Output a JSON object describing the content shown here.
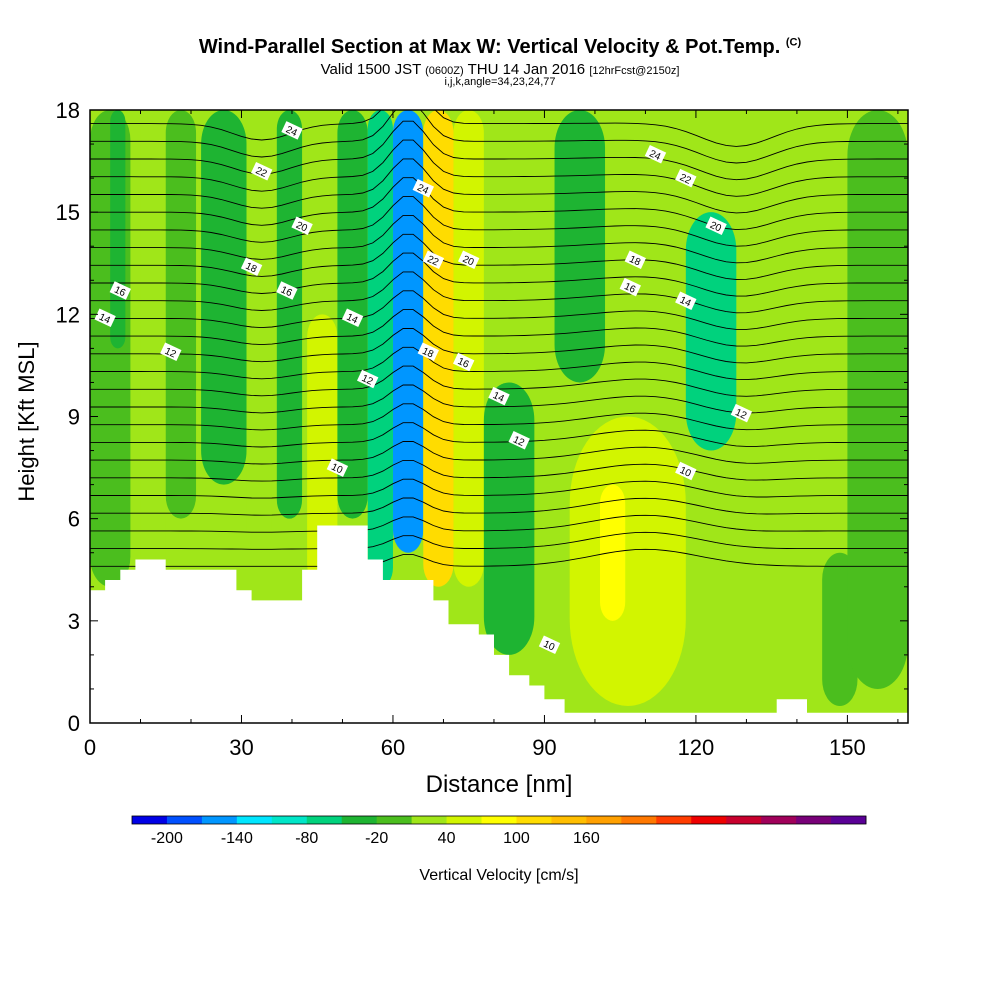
{
  "title": {
    "main": "Wind-Parallel Section at Max W: Vertical Velocity & Pot.Temp.",
    "copyright": "(C)",
    "valid_prefix": "Valid 1500 JST",
    "valid_utc": "(0600Z)",
    "valid_date": "THU 14 Jan 2016",
    "forecast": "[12hrFcst@2150z]",
    "indices": "i,j,k,angle=34,23,24,77"
  },
  "chart_data": {
    "type": "heatmap",
    "xlabel": "Distance [nm]",
    "ylabel": "Height [Kft MSL]",
    "xlim": [
      0,
      162
    ],
    "ylim": [
      0,
      18
    ],
    "x_ticks": [
      0,
      30,
      60,
      90,
      120,
      150
    ],
    "y_ticks": [
      0,
      3,
      6,
      9,
      12,
      15,
      18
    ],
    "colorbar": {
      "label": "Vertical Velocity [cm/s]",
      "ticks": [
        -200,
        -140,
        -80,
        -20,
        40,
        100,
        160
      ],
      "colors": [
        "#0000e6",
        "#0050ff",
        "#0096ff",
        "#00e6ff",
        "#00e6c8",
        "#00d27d",
        "#1eb432",
        "#4bbe1e",
        "#a0e619",
        "#d2f500",
        "#ffff00",
        "#ffdc00",
        "#ffbe00",
        "#ffa000",
        "#ff7800",
        "#ff3c00",
        "#ee0000",
        "#c8002d",
        "#a0005a",
        "#780078",
        "#5a0096"
      ]
    },
    "velocity_cells": [
      {
        "x": [
          0,
          8
        ],
        "y": [
          4,
          18
        ],
        "w": -15
      },
      {
        "x": [
          4,
          7
        ],
        "y": [
          11,
          18
        ],
        "w": -30
      },
      {
        "x": [
          10,
          15
        ],
        "y": [
          4,
          18
        ],
        "w": 10
      },
      {
        "x": [
          15,
          21
        ],
        "y": [
          6,
          18
        ],
        "w": 5
      },
      {
        "x": [
          22,
          31
        ],
        "y": [
          7,
          18
        ],
        "w": -35
      },
      {
        "x": [
          24,
          29
        ],
        "y": [
          11,
          18
        ],
        "w": -45
      },
      {
        "x": [
          31,
          36
        ],
        "y": [
          5,
          18
        ],
        "w": 30
      },
      {
        "x": [
          37,
          42
        ],
        "y": [
          6,
          18
        ],
        "w": -40
      },
      {
        "x": [
          43,
          49
        ],
        "y": [
          4,
          12
        ],
        "w": 50
      },
      {
        "x": [
          49,
          55
        ],
        "y": [
          6,
          18
        ],
        "w": -30
      },
      {
        "x": [
          55,
          60
        ],
        "y": [
          4,
          18
        ],
        "w": -80
      },
      {
        "x": [
          60,
          66
        ],
        "y": [
          5,
          18
        ],
        "w": -160
      },
      {
        "x": [
          66,
          72
        ],
        "y": [
          4,
          18
        ],
        "w": 120
      },
      {
        "x": [
          72,
          78
        ],
        "y": [
          4,
          18
        ],
        "w": 50
      },
      {
        "x": [
          78,
          88
        ],
        "y": [
          2,
          10
        ],
        "w": -25
      },
      {
        "x": [
          95,
          118
        ],
        "y": [
          0.5,
          9
        ],
        "w": 60
      },
      {
        "x": [
          101,
          106
        ],
        "y": [
          3,
          7
        ],
        "w": 90
      },
      {
        "x": [
          92,
          102
        ],
        "y": [
          10,
          18
        ],
        "w": -50
      },
      {
        "x": [
          118,
          128
        ],
        "y": [
          8,
          15
        ],
        "w": -70
      },
      {
        "x": [
          145,
          152
        ],
        "y": [
          0.5,
          5
        ],
        "w": -20
      },
      {
        "x": [
          150,
          162
        ],
        "y": [
          1,
          18
        ],
        "w": 5
      }
    ],
    "potential_temperature_labels": [
      {
        "x": 3,
        "y": 11.9,
        "value": "14"
      },
      {
        "x": 6,
        "y": 12.7,
        "value": "16"
      },
      {
        "x": 16,
        "y": 10.9,
        "value": "12"
      },
      {
        "x": 40,
        "y": 17.4,
        "value": "24"
      },
      {
        "x": 34,
        "y": 16.2,
        "value": "22"
      },
      {
        "x": 42,
        "y": 14.6,
        "value": "20"
      },
      {
        "x": 32,
        "y": 13.4,
        "value": "18"
      },
      {
        "x": 39,
        "y": 12.7,
        "value": "16"
      },
      {
        "x": 52,
        "y": 11.9,
        "value": "14"
      },
      {
        "x": 55,
        "y": 10.1,
        "value": "12"
      },
      {
        "x": 49,
        "y": 7.5,
        "value": "10"
      },
      {
        "x": 66,
        "y": 15.7,
        "value": "24"
      },
      {
        "x": 68,
        "y": 13.6,
        "value": "22"
      },
      {
        "x": 75,
        "y": 13.6,
        "value": "20"
      },
      {
        "x": 67,
        "y": 10.9,
        "value": "18"
      },
      {
        "x": 74,
        "y": 10.6,
        "value": "16"
      },
      {
        "x": 81,
        "y": 9.6,
        "value": "14"
      },
      {
        "x": 85,
        "y": 8.3,
        "value": "12"
      },
      {
        "x": 91,
        "y": 2.3,
        "value": "10"
      },
      {
        "x": 112,
        "y": 16.7,
        "value": "24"
      },
      {
        "x": 118,
        "y": 16.0,
        "value": "22"
      },
      {
        "x": 124,
        "y": 14.6,
        "value": "20"
      },
      {
        "x": 108,
        "y": 13.6,
        "value": "18"
      },
      {
        "x": 107,
        "y": 12.8,
        "value": "16"
      },
      {
        "x": 118,
        "y": 12.4,
        "value": "14"
      },
      {
        "x": 129,
        "y": 9.1,
        "value": "12"
      },
      {
        "x": 118,
        "y": 7.4,
        "value": "10"
      }
    ],
    "terrain_profile": [
      [
        0,
        3.9
      ],
      [
        3,
        3.9
      ],
      [
        3,
        4.2
      ],
      [
        6,
        4.2
      ],
      [
        6,
        4.5
      ],
      [
        9,
        4.5
      ],
      [
        9,
        4.8
      ],
      [
        15,
        4.8
      ],
      [
        15,
        4.5
      ],
      [
        29,
        4.5
      ],
      [
        29,
        3.9
      ],
      [
        32,
        3.9
      ],
      [
        32,
        3.6
      ],
      [
        42,
        3.6
      ],
      [
        42,
        4.5
      ],
      [
        45,
        4.5
      ],
      [
        45,
        5.8
      ],
      [
        55,
        5.8
      ],
      [
        55,
        4.8
      ],
      [
        58,
        4.8
      ],
      [
        58,
        4.2
      ],
      [
        68,
        4.2
      ],
      [
        68,
        3.6
      ],
      [
        71,
        3.6
      ],
      [
        71,
        2.9
      ],
      [
        77,
        2.9
      ],
      [
        77,
        2.6
      ],
      [
        80,
        2.6
      ],
      [
        80,
        2.0
      ],
      [
        83,
        2.0
      ],
      [
        83,
        1.4
      ],
      [
        87,
        1.4
      ],
      [
        87,
        1.1
      ],
      [
        90,
        1.1
      ],
      [
        90,
        0.7
      ],
      [
        94,
        0.7
      ],
      [
        94,
        0.3
      ],
      [
        136,
        0.3
      ],
      [
        136,
        0.7
      ],
      [
        142,
        0.7
      ],
      [
        142,
        0.3
      ],
      [
        162,
        0.3
      ]
    ]
  }
}
